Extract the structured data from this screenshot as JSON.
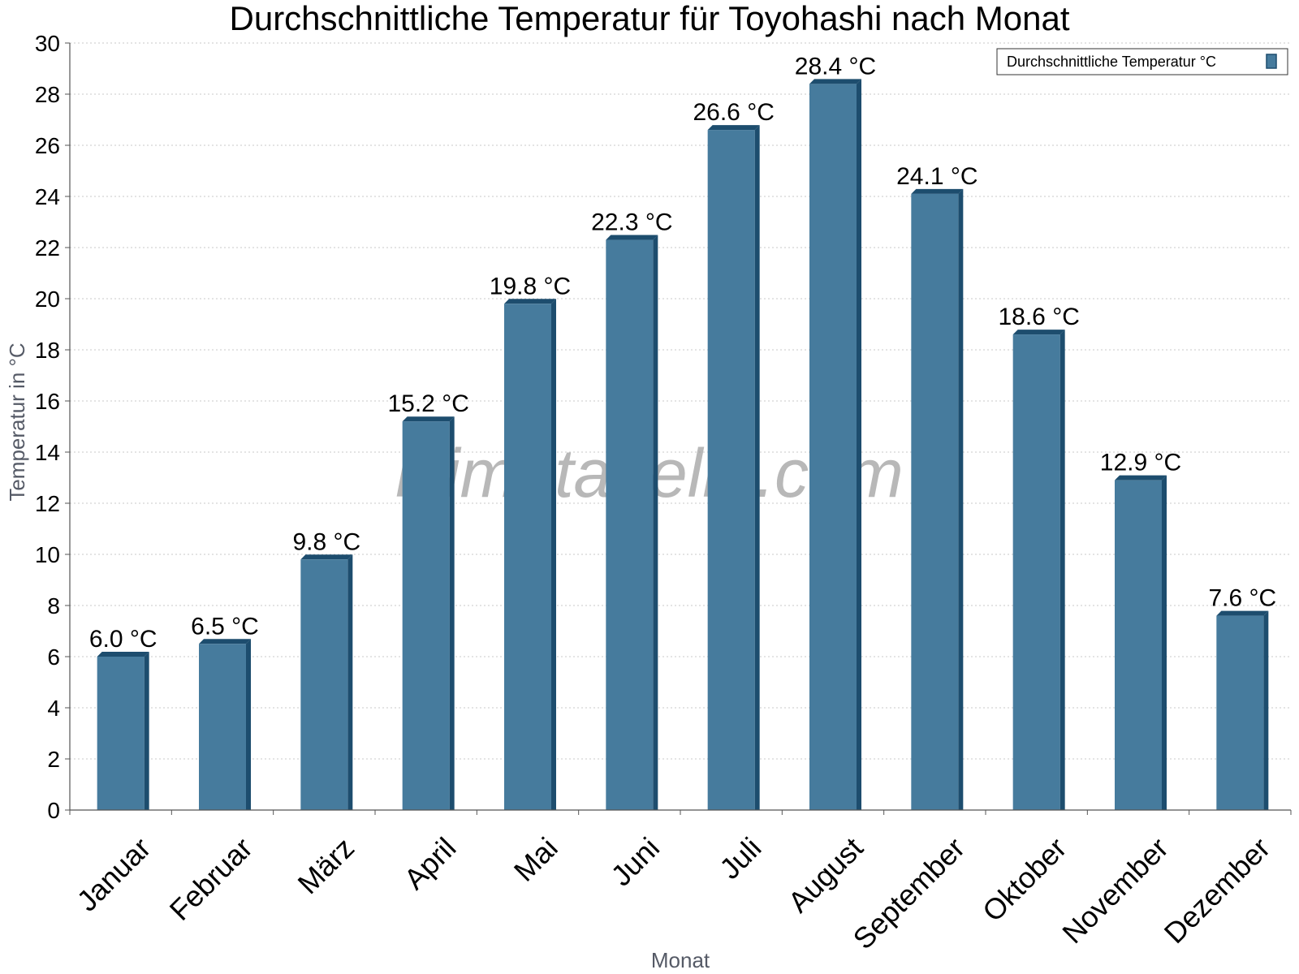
{
  "chart_data": {
    "type": "bar",
    "title": "Durchschnittliche Temperatur für Toyohashi nach Monat",
    "xlabel": "Monat",
    "ylabel": "Temperatur in °C",
    "ylim": [
      0,
      30
    ],
    "yticks": [
      0,
      2,
      4,
      6,
      8,
      10,
      12,
      14,
      16,
      18,
      20,
      22,
      24,
      26,
      28,
      30
    ],
    "grid": true,
    "legend_position": "top-right",
    "categories": [
      "Januar",
      "Februar",
      "März",
      "April",
      "Mai",
      "Juni",
      "Juli",
      "August",
      "September",
      "Oktober",
      "November",
      "Dezember"
    ],
    "series": [
      {
        "name": "Durchschnittliche Temperatur °C",
        "values": [
          6.0,
          6.5,
          9.8,
          15.2,
          19.8,
          22.3,
          26.6,
          28.4,
          24.1,
          18.6,
          12.9,
          7.6
        ],
        "data_labels": [
          "6.0 °C",
          "6.5 °C",
          "9.8 °C",
          "15.2 °C",
          "19.8 °C",
          "22.3 °C",
          "26.6 °C",
          "28.4 °C",
          "24.1 °C",
          "18.6 °C",
          "12.9 °C",
          "7.6 °C"
        ],
        "color": "#467b9d",
        "edge_color": "#1d4d6e"
      }
    ],
    "watermark": "klimatabelle.com"
  }
}
